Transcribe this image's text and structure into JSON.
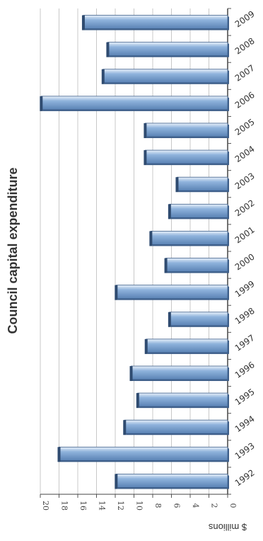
{
  "chart_data": {
    "type": "bar",
    "title": "Council capital expenditure",
    "ylabel": "$ millions",
    "xlabel": "",
    "ylim": [
      0,
      20
    ],
    "yticks": [
      0,
      2,
      4,
      6,
      8,
      10,
      12,
      14,
      16,
      18,
      20
    ],
    "grid": true,
    "categories": [
      "1992",
      "1993",
      "1994",
      "1995",
      "1996",
      "1997",
      "1998",
      "1999",
      "2000",
      "2001",
      "2002",
      "2003",
      "2004",
      "2005",
      "2006",
      "2007",
      "2008",
      "2009"
    ],
    "values": [
      11.9,
      18.0,
      11.0,
      9.6,
      10.3,
      8.7,
      6.2,
      11.9,
      6.6,
      8.2,
      6.2,
      5.4,
      8.8,
      8.8,
      19.9,
      13.3,
      12.8,
      15.4
    ],
    "bar_color": "#7ea6d4",
    "bar_dark_color": "#3e5f8a"
  }
}
